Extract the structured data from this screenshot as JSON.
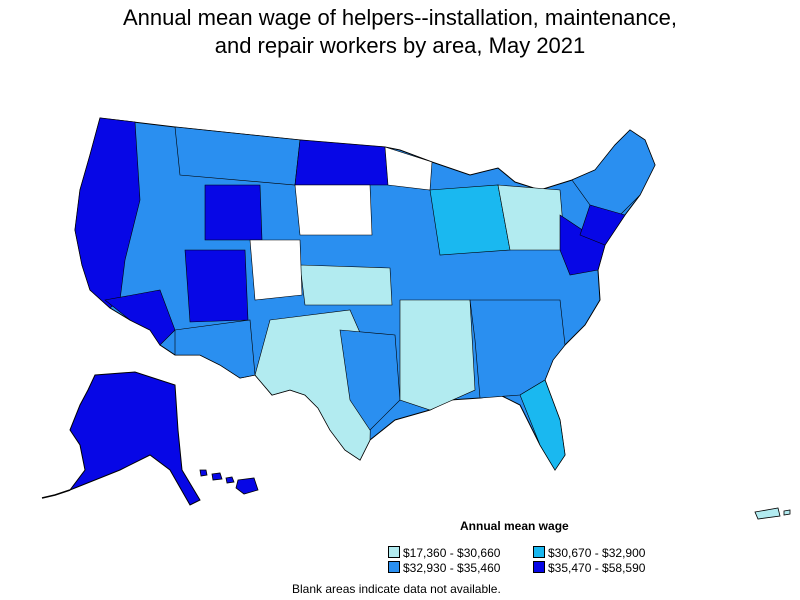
{
  "title": {
    "line1": "Annual mean wage of helpers--installation, maintenance,",
    "line2": "and repair workers by area, May 2021"
  },
  "legend": {
    "title": "Annual mean wage",
    "items": [
      {
        "label": "$17,360 - $30,660",
        "color": "#b2ebf0"
      },
      {
        "label": "$30,670 - $32,900",
        "color": "#1ab8f0"
      },
      {
        "label": "$32,930 - $35,460",
        "color": "#2a8ff0"
      },
      {
        "label": "$35,470 - $58,590",
        "color": "#0707e6"
      }
    ]
  },
  "footnote": "Blank areas indicate data not available."
}
